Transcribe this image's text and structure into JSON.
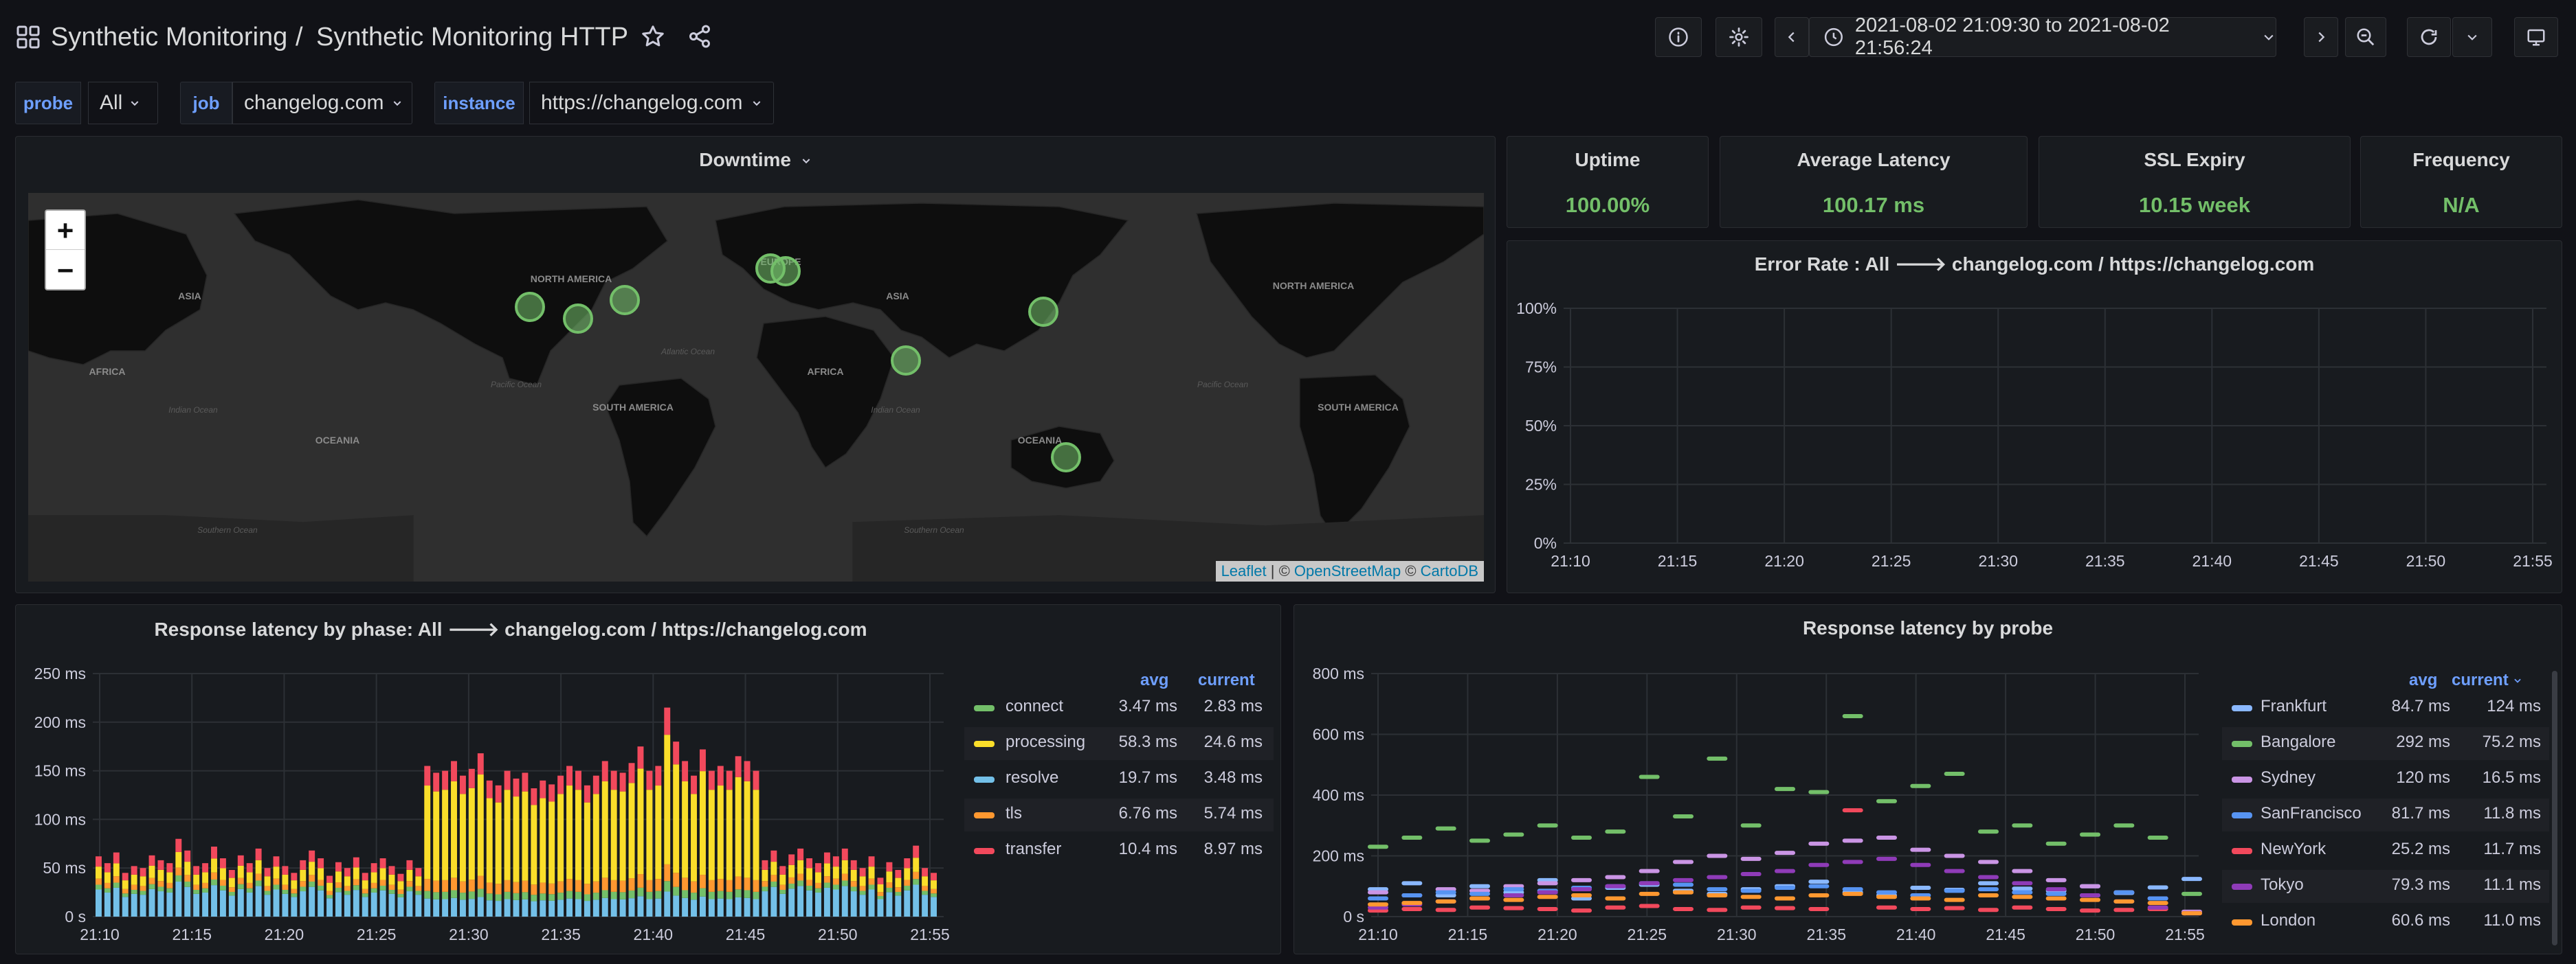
{
  "header": {
    "section": "Synthetic Monitoring",
    "separator": "/",
    "title": "Synthetic Monitoring HTTP",
    "time_range": "2021-08-02 21:09:30 to 2021-08-02 21:56:24"
  },
  "variables": [
    {
      "label": "probe",
      "value": "All"
    },
    {
      "label": "job",
      "value": "changelog.com"
    },
    {
      "label": "instance",
      "value": "https://changelog.com"
    }
  ],
  "map": {
    "title": "Downtime",
    "zoom_in": "+",
    "zoom_out": "−",
    "attribution": {
      "leaflet": "Leaflet",
      "sep1": " | © ",
      "osm": "OpenStreetMap",
      "sep2": " © ",
      "carto": "CartoDB"
    },
    "labels": [
      "ASIA",
      "NORTH AMERICA",
      "EUROPE",
      "ASIA",
      "NORTH AMERICA",
      "AFRICA",
      "SOUTH AMERICA",
      "AFRICA",
      "SOUTH AMERICA",
      "OCEANIA",
      "OCEANIA",
      "Pacific Ocean",
      "Atlantic Ocean",
      "Indian Ocean",
      "Pacific Ocean",
      "Indian Ocean",
      "Southern Ocean",
      "Southern Ocean"
    ]
  },
  "stats": [
    {
      "title": "Uptime",
      "value": "100.00%"
    },
    {
      "title": "Average Latency",
      "value": "100.17 ms"
    },
    {
      "title": "SSL Expiry",
      "value": "10.15 week"
    },
    {
      "title": "Frequency",
      "value": "N/A"
    }
  ],
  "colors": {
    "bg": "#111217",
    "panel": "#181b1f",
    "green": "#73bf69",
    "yellow": "#fade2a",
    "blue": "#8ab8ff",
    "purple": "#ca95e5",
    "orange": "#ff9830",
    "red": "#f2495c",
    "skyblue": "#73c0e8",
    "legend_link": "#6e9fff"
  },
  "error_rate": {
    "title": "Error Rate : All 🡒 changelog.com / https://changelog.com",
    "chart_data": {
      "type": "line",
      "title": "Error Rate : All 🡒 changelog.com / https://changelog.com",
      "y_ticks": [
        "100%",
        "75%",
        "50%",
        "25%",
        "0%"
      ],
      "x_ticks": [
        "21:10",
        "21:15",
        "21:20",
        "21:25",
        "21:30",
        "21:35",
        "21:40",
        "21:45",
        "21:50",
        "21:55"
      ],
      "ylim": [
        0,
        100
      ],
      "series": []
    }
  },
  "phase": {
    "title": "Response latency by phase: All 🡒 changelog.com / https://changelog.com",
    "legend_headers": {
      "avg": "avg",
      "current": "current"
    },
    "legend": [
      {
        "name": "connect",
        "avg": "3.47 ms",
        "current": "2.83 ms",
        "color": "#73bf69"
      },
      {
        "name": "processing",
        "avg": "58.3 ms",
        "current": "24.6 ms",
        "color": "#fade2a"
      },
      {
        "name": "resolve",
        "avg": "19.7 ms",
        "current": "3.48 ms",
        "color": "#73c0e8"
      },
      {
        "name": "tls",
        "avg": "6.76 ms",
        "current": "5.74 ms",
        "color": "#ff9830"
      },
      {
        "name": "transfer",
        "avg": "10.4 ms",
        "current": "8.97 ms",
        "color": "#f2495c"
      }
    ],
    "chart_data": {
      "type": "bar",
      "stacked": true,
      "title": "Response latency by phase: All 🡒 changelog.com / https://changelog.com",
      "y_ticks": [
        "250 ms",
        "200 ms",
        "150 ms",
        "100 ms",
        "50 ms",
        "0 s"
      ],
      "x_ticks": [
        "21:10",
        "21:15",
        "21:20",
        "21:25",
        "21:30",
        "21:35",
        "21:40",
        "21:45",
        "21:50",
        "21:55"
      ],
      "ylim": [
        0,
        250
      ],
      "totals": [
        62,
        55,
        66,
        45,
        52,
        50,
        63,
        58,
        55,
        80,
        68,
        52,
        55,
        72,
        60,
        48,
        63,
        55,
        70,
        50,
        62,
        52,
        45,
        58,
        68,
        60,
        42,
        56,
        50,
        61,
        45,
        55,
        60,
        52,
        44,
        58,
        50,
        155,
        148,
        150,
        160,
        145,
        152,
        168,
        140,
        135,
        150,
        142,
        148,
        132,
        140,
        136,
        145,
        155,
        150,
        135,
        145,
        160,
        150,
        148,
        158,
        175,
        150,
        155,
        215,
        180,
        160,
        145,
        172,
        150,
        155,
        150,
        165,
        160,
        150,
        58,
        68,
        52,
        64,
        70,
        60,
        55,
        66,
        62,
        70,
        58,
        50,
        62,
        40,
        56,
        48,
        60,
        73,
        50,
        45
      ]
    }
  },
  "probe": {
    "title": "Response latency by probe",
    "legend_headers": {
      "avg": "avg",
      "current": "current"
    },
    "legend": [
      {
        "name": "Frankfurt",
        "avg": "84.7 ms",
        "current": "124 ms",
        "color": "#8ab8ff"
      },
      {
        "name": "Bangalore",
        "avg": "292 ms",
        "current": "75.2 ms",
        "color": "#73bf69"
      },
      {
        "name": "Sydney",
        "avg": "120 ms",
        "current": "16.5 ms",
        "color": "#ca95e5"
      },
      {
        "name": "SanFrancisco",
        "avg": "81.7 ms",
        "current": "11.8 ms",
        "color": "#5794f2"
      },
      {
        "name": "NewYork",
        "avg": "25.2 ms",
        "current": "11.7 ms",
        "color": "#f2495c"
      },
      {
        "name": "Tokyo",
        "avg": "79.3 ms",
        "current": "11.1 ms",
        "color": "#8f3bb8"
      },
      {
        "name": "London",
        "avg": "60.6 ms",
        "current": "11.0 ms",
        "color": "#ff9830"
      }
    ],
    "chart_data": {
      "type": "line",
      "title": "Response latency by probe",
      "y_ticks": [
        "800 ms",
        "600 ms",
        "400 ms",
        "200 ms",
        "0 s"
      ],
      "x_ticks": [
        "21:10",
        "21:15",
        "21:20",
        "21:25",
        "21:30",
        "21:35",
        "21:40",
        "21:45",
        "21:50",
        "21:55"
      ],
      "ylim": [
        0,
        800
      ],
      "series": [
        {
          "name": "Frankfurt",
          "values": [
            90,
            110,
            70,
            100,
            80,
            120,
            60,
            95,
            105,
            85,
            75,
            90,
            100,
            115,
            80,
            70,
            95,
            88,
            110,
            92,
            85,
            100,
            78,
            96,
            124
          ]
        },
        {
          "name": "Bangalore",
          "values": [
            230,
            260,
            290,
            250,
            270,
            300,
            260,
            280,
            460,
            330,
            520,
            300,
            420,
            410,
            660,
            380,
            430,
            470,
            280,
            300,
            240,
            270,
            300,
            260,
            75
          ]
        },
        {
          "name": "Sydney",
          "values": [
            80,
            70,
            90,
            85,
            100,
            110,
            120,
            130,
            150,
            180,
            200,
            190,
            210,
            240,
            250,
            260,
            220,
            200,
            180,
            150,
            120,
            100,
            80,
            60,
            16
          ]
        },
        {
          "name": "SanFrancisco",
          "values": [
            60,
            70,
            80,
            75,
            90,
            85,
            95,
            100,
            110,
            105,
            90,
            85,
            95,
            100,
            90,
            80,
            70,
            85,
            90,
            80,
            75,
            70,
            80,
            60,
            12
          ]
        },
        {
          "name": "NewYork",
          "values": [
            20,
            25,
            22,
            30,
            28,
            25,
            20,
            30,
            35,
            25,
            22,
            30,
            28,
            25,
            350,
            30,
            25,
            28,
            22,
            30,
            25,
            20,
            22,
            25,
            12
          ]
        },
        {
          "name": "Tokyo",
          "values": [
            30,
            40,
            50,
            60,
            70,
            80,
            90,
            100,
            110,
            120,
            130,
            140,
            150,
            170,
            180,
            190,
            170,
            150,
            130,
            110,
            90,
            70,
            50,
            30,
            11
          ]
        },
        {
          "name": "London",
          "values": [
            40,
            45,
            50,
            60,
            55,
            65,
            70,
            60,
            75,
            80,
            70,
            65,
            60,
            70,
            75,
            65,
            60,
            55,
            70,
            65,
            60,
            55,
            50,
            45,
            11
          ]
        }
      ]
    }
  }
}
